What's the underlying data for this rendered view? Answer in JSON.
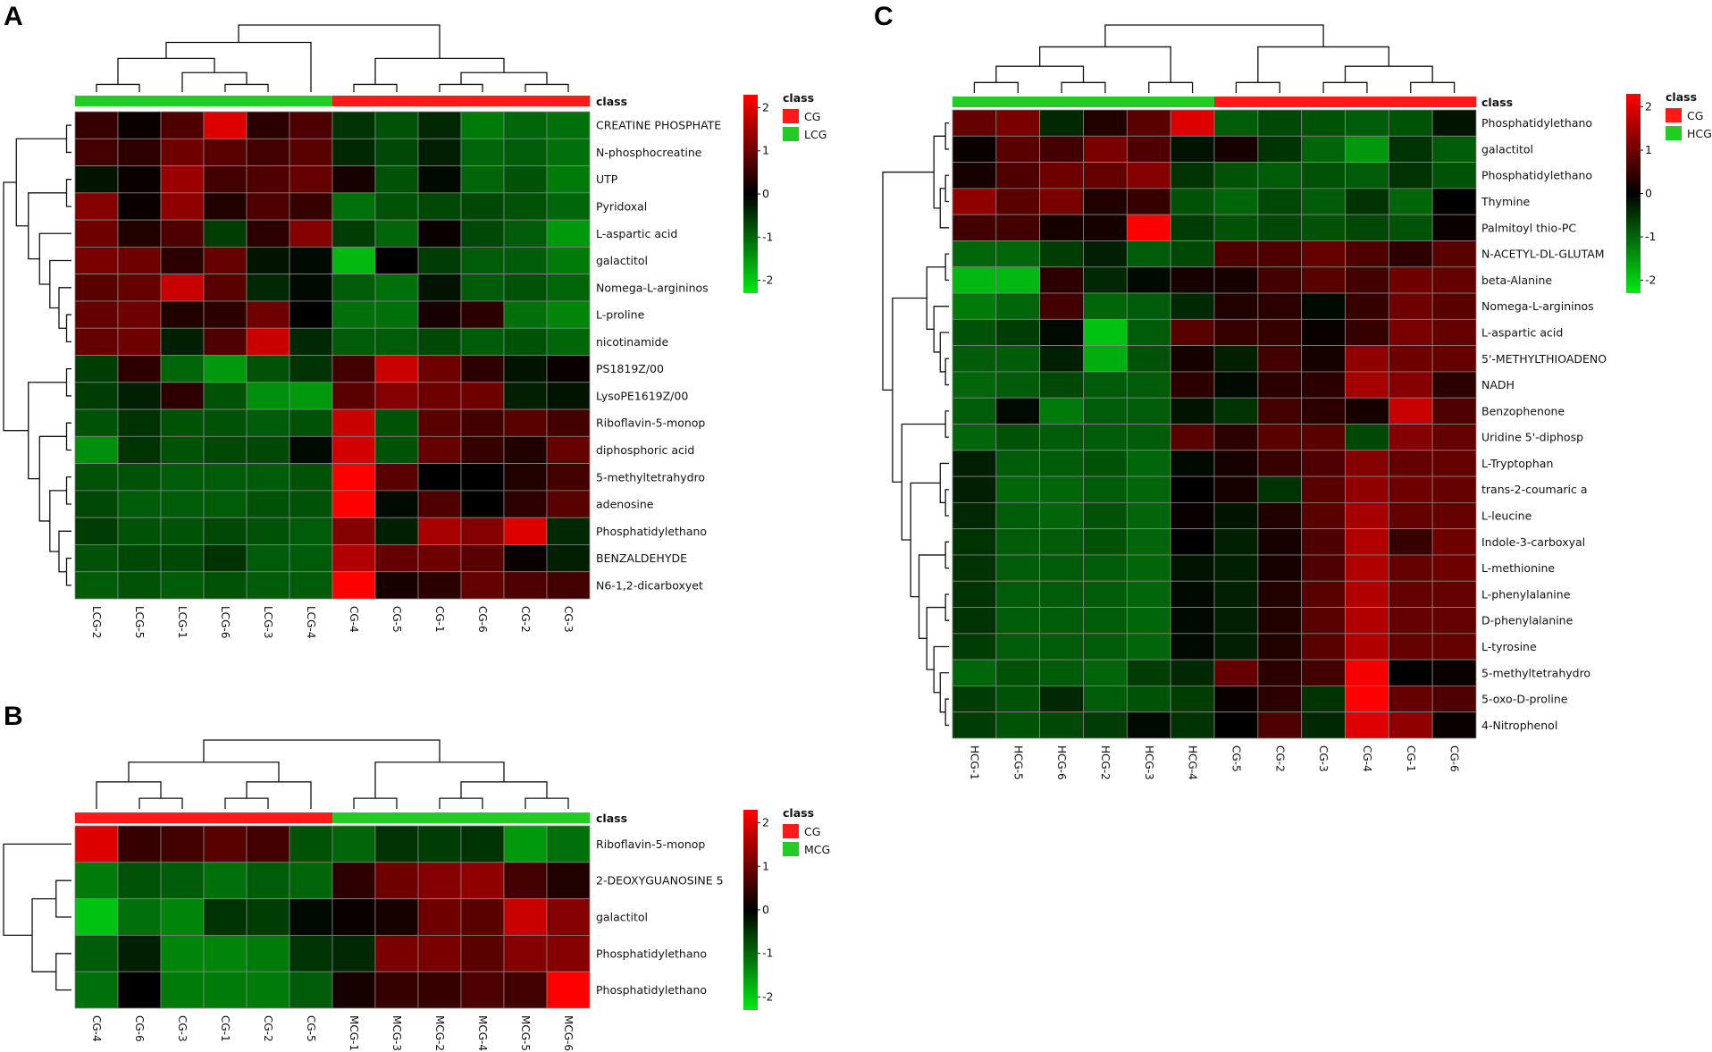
{
  "colors": {
    "cg": "#ff1a1a",
    "other": "#22cc22",
    "grid": "#888888"
  },
  "chart_data": [
    {
      "type": "heatmap",
      "panel": "A",
      "class_label": "class",
      "legend": {
        "title": "class",
        "entries": [
          {
            "name": "CG",
            "color": "#ff1a1a"
          },
          {
            "name": "LCG",
            "color": "#22cc22"
          }
        ]
      },
      "scale": {
        "min": -2.3,
        "max": 2.3,
        "ticks": [
          "2",
          "1",
          "0",
          "-1",
          "-2"
        ]
      },
      "columns": [
        "LCG-2",
        "LCG-5",
        "LCG-1",
        "LCG-6",
        "LCG-3",
        "LCG-4",
        "CG-4",
        "CG-5",
        "CG-1",
        "CG-6",
        "CG-2",
        "CG-3"
      ],
      "column_classes": [
        "LCG",
        "LCG",
        "LCG",
        "LCG",
        "LCG",
        "LCG",
        "CG",
        "CG",
        "CG",
        "CG",
        "CG",
        "CG"
      ],
      "rows": [
        "CREATINE PHOSPHATE",
        "N-phosphocreatine",
        "UTP",
        "Pyridoxal",
        "L-aspartic acid",
        "galactitol",
        "Nomega-L-argininos",
        "L-proline",
        "nicotinamide",
        "PS1819Z/00",
        "LysoPE1619Z/00",
        "Riboflavin-5-monop",
        "diphosphoric acid",
        "5-methyltetrahydro",
        "adenosine",
        "Phosphatidylethano",
        "BENZALDEHYDE",
        "N6-1,2-dicarboxyet"
      ],
      "values": [
        [
          0.5,
          0.1,
          0.7,
          2.0,
          0.4,
          0.7,
          -0.5,
          -0.8,
          -0.4,
          -1.2,
          -1.0,
          -1.1
        ],
        [
          0.6,
          0.4,
          1.0,
          0.8,
          0.6,
          0.8,
          -0.4,
          -0.7,
          -0.3,
          -1.0,
          -0.9,
          -1.1
        ],
        [
          -0.2,
          0.1,
          1.4,
          0.6,
          0.7,
          0.9,
          0.2,
          -0.8,
          -0.1,
          -1.0,
          -0.8,
          -1.2
        ],
        [
          1.2,
          0.1,
          1.3,
          0.3,
          0.7,
          0.5,
          -1.1,
          -0.8,
          -0.7,
          -0.7,
          -0.8,
          -1.0
        ],
        [
          1.0,
          0.3,
          0.7,
          -0.6,
          0.4,
          1.2,
          -0.6,
          -1.0,
          0.1,
          -0.7,
          -0.9,
          -1.5
        ],
        [
          1.1,
          1.0,
          0.4,
          0.9,
          -0.2,
          -0.1,
          -1.8,
          0.0,
          -0.6,
          -0.9,
          -0.9,
          -1.2
        ],
        [
          0.8,
          0.9,
          1.8,
          0.8,
          -0.4,
          -0.1,
          -0.9,
          -1.1,
          -0.2,
          -0.9,
          -0.8,
          -1.0
        ],
        [
          0.9,
          1.0,
          0.3,
          0.4,
          1.0,
          0.0,
          -1.1,
          -1.1,
          0.2,
          0.4,
          -1.1,
          -1.3
        ],
        [
          0.9,
          1.0,
          -0.3,
          0.7,
          1.8,
          -0.4,
          -0.9,
          -0.9,
          -0.7,
          -0.9,
          -0.8,
          -1.0
        ],
        [
          -0.6,
          0.4,
          -1.0,
          -1.5,
          -0.8,
          -0.5,
          0.6,
          1.8,
          1.0,
          0.4,
          -0.2,
          0.1
        ],
        [
          -0.6,
          -0.3,
          0.4,
          -0.8,
          -1.4,
          -1.5,
          0.8,
          1.2,
          1.0,
          1.0,
          -0.3,
          -0.2
        ],
        [
          -0.8,
          -0.5,
          -0.8,
          -0.8,
          -0.9,
          -0.8,
          1.8,
          -0.8,
          0.8,
          0.6,
          0.8,
          0.6
        ],
        [
          -1.4,
          -0.5,
          -0.8,
          -0.7,
          -0.7,
          -0.1,
          1.9,
          -0.8,
          0.9,
          0.5,
          0.3,
          0.9
        ],
        [
          -0.8,
          -0.8,
          -0.9,
          -0.9,
          -0.9,
          -0.8,
          2.3,
          0.8,
          0.0,
          0.0,
          0.3,
          0.6
        ],
        [
          -0.7,
          -0.9,
          -0.9,
          -0.9,
          -0.8,
          -0.8,
          2.3,
          -0.1,
          0.7,
          0.0,
          0.4,
          0.8
        ],
        [
          -0.6,
          -0.8,
          -0.8,
          -0.7,
          -0.8,
          -0.9,
          1.2,
          -0.3,
          1.5,
          1.2,
          2.0,
          -0.4
        ],
        [
          -0.8,
          -0.7,
          -0.7,
          -0.5,
          -0.9,
          -0.9,
          1.6,
          0.9,
          1.0,
          0.8,
          0.1,
          -0.3
        ],
        [
          -0.9,
          -0.8,
          -0.9,
          -0.8,
          -0.9,
          -0.9,
          2.4,
          0.2,
          0.4,
          0.9,
          0.7,
          0.6
        ]
      ]
    },
    {
      "type": "heatmap",
      "panel": "B",
      "class_label": "class",
      "legend": {
        "title": "class",
        "entries": [
          {
            "name": "CG",
            "color": "#ff1a1a"
          },
          {
            "name": "MCG",
            "color": "#22cc22"
          }
        ]
      },
      "scale": {
        "min": -2.3,
        "max": 2.3,
        "ticks": [
          "2",
          "1",
          "0",
          "-1",
          "-2"
        ]
      },
      "columns": [
        "CG-4",
        "CG-6",
        "CG-3",
        "CG-1",
        "CG-2",
        "CG-5",
        "MCG-1",
        "MCG-3",
        "MCG-2",
        "MCG-4",
        "MCG-5",
        "MCG-6"
      ],
      "column_classes": [
        "CG",
        "CG",
        "CG",
        "CG",
        "CG",
        "CG",
        "MCG",
        "MCG",
        "MCG",
        "MCG",
        "MCG",
        "MCG"
      ],
      "rows": [
        "Riboflavin-5-monop",
        "2-DEOXYGUANOSINE 5",
        "galactitol",
        "Phosphatidylethano",
        "Phosphatidylethano"
      ],
      "values": [
        [
          2.0,
          0.5,
          0.6,
          0.8,
          0.6,
          -0.8,
          -1.0,
          -0.5,
          -0.6,
          -0.5,
          -1.5,
          -1.1
        ],
        [
          -1.2,
          -0.8,
          -0.9,
          -1.1,
          -0.9,
          -1.0,
          0.4,
          1.0,
          1.2,
          1.3,
          0.6,
          0.3
        ],
        [
          -1.9,
          -1.1,
          -1.3,
          -0.5,
          -0.6,
          -0.1,
          0.1,
          0.2,
          1.0,
          0.8,
          1.8,
          1.2
        ],
        [
          -0.9,
          -0.3,
          -1.3,
          -1.3,
          -1.2,
          -0.5,
          -0.4,
          1.1,
          1.1,
          0.8,
          1.2,
          1.2
        ],
        [
          -1.1,
          0.0,
          -1.2,
          -1.2,
          -1.2,
          -0.9,
          0.2,
          0.5,
          0.5,
          0.7,
          0.6,
          2.4
        ]
      ]
    },
    {
      "type": "heatmap",
      "panel": "C",
      "class_label": "class",
      "legend": {
        "title": "class",
        "entries": [
          {
            "name": "CG",
            "color": "#ff1a1a"
          },
          {
            "name": "HCG",
            "color": "#22cc22"
          }
        ]
      },
      "scale": {
        "min": -2.3,
        "max": 2.3,
        "ticks": [
          "2",
          "1",
          "0",
          "-1",
          "-2"
        ]
      },
      "columns": [
        "HCG-1",
        "HCG-5",
        "HCG-6",
        "HCG-2",
        "HCG-3",
        "HCG-4",
        "CG-5",
        "CG-2",
        "CG-3",
        "CG-4",
        "CG-1",
        "CG-6"
      ],
      "column_classes": [
        "HCG",
        "HCG",
        "HCG",
        "HCG",
        "HCG",
        "HCG",
        "CG",
        "CG",
        "CG",
        "CG",
        "CG",
        "CG"
      ],
      "rows": [
        "Phosphatidylethano",
        "galactitol",
        "Phosphatidylethano",
        "Thymine",
        "Palmitoyl thio-PC",
        "N-ACETYL-DL-GLUTAM",
        "beta-Alanine",
        "Nomega-L-argininos",
        "L-aspartic acid",
        "5'-METHYLTHIOADENO",
        "NADH",
        "Benzophenone",
        "Uridine 5'-diphosp",
        "L-Tryptophan",
        "trans-2-coumaric a",
        "L-leucine",
        "Indole-3-carboxyal",
        "L-methionine",
        "L-phenylalanine",
        "D-phenylalanine",
        "L-tyrosine",
        "5-methyltetrahydro",
        "5-oxo-D-proline",
        "4-Nitrophenol"
      ],
      "values": [
        [
          0.9,
          1.1,
          -0.4,
          0.3,
          0.8,
          2.0,
          -0.9,
          -0.7,
          -0.8,
          -0.9,
          -0.8,
          -0.2
        ],
        [
          0.1,
          0.8,
          0.6,
          1.1,
          0.7,
          -0.2,
          0.2,
          -0.5,
          -1.0,
          -1.5,
          -0.5,
          -0.9
        ],
        [
          0.2,
          0.7,
          1.0,
          0.9,
          1.2,
          -0.5,
          -0.8,
          -0.9,
          -0.8,
          -0.9,
          -0.5,
          -0.8
        ],
        [
          1.3,
          0.8,
          1.1,
          0.3,
          0.5,
          -0.8,
          -1.0,
          -0.7,
          -0.9,
          -0.5,
          -1.0,
          0.0
        ],
        [
          0.6,
          0.6,
          0.2,
          0.2,
          2.3,
          -0.6,
          -0.8,
          -0.7,
          -0.8,
          -0.7,
          -0.8,
          0.1
        ],
        [
          -1.0,
          -1.0,
          -0.6,
          -0.3,
          -0.9,
          -0.7,
          0.7,
          0.7,
          0.9,
          0.7,
          0.4,
          0.8
        ],
        [
          -1.8,
          -1.8,
          0.4,
          -0.4,
          -0.1,
          0.2,
          0.2,
          0.6,
          0.8,
          0.6,
          1.0,
          0.9
        ],
        [
          -1.2,
          -1.0,
          0.6,
          -1.0,
          -0.9,
          -0.4,
          0.3,
          0.4,
          -0.1,
          0.5,
          1.0,
          0.8
        ],
        [
          -0.8,
          -0.6,
          -0.1,
          -1.9,
          -0.9,
          0.8,
          0.5,
          0.5,
          0.1,
          0.5,
          1.1,
          0.9
        ],
        [
          -0.9,
          -0.9,
          -0.3,
          -1.7,
          -0.8,
          0.2,
          -0.3,
          0.6,
          0.2,
          1.3,
          1.0,
          0.9
        ],
        [
          -1.0,
          -0.9,
          -0.7,
          -0.9,
          -0.9,
          0.4,
          -0.1,
          0.4,
          0.4,
          1.5,
          1.2,
          0.4
        ],
        [
          -0.9,
          -0.1,
          -1.2,
          -0.9,
          -0.9,
          -0.2,
          -0.5,
          0.6,
          0.4,
          0.2,
          1.8,
          0.7
        ],
        [
          -1.0,
          -0.8,
          -0.9,
          -0.9,
          -0.9,
          0.8,
          0.4,
          0.8,
          0.8,
          -0.7,
          1.2,
          0.9
        ],
        [
          -0.3,
          -0.9,
          -0.9,
          -0.8,
          -1.0,
          -0.1,
          0.2,
          0.5,
          0.7,
          1.2,
          0.9,
          0.9
        ],
        [
          -0.3,
          -1.0,
          -1.0,
          -0.9,
          -1.0,
          0.0,
          0.2,
          -0.5,
          0.8,
          1.3,
          1.0,
          0.9
        ],
        [
          -0.4,
          -0.9,
          -1.0,
          -0.8,
          -1.0,
          0.1,
          -0.2,
          0.3,
          0.8,
          1.5,
          0.9,
          0.9
        ],
        [
          -0.5,
          -0.9,
          -0.9,
          -0.8,
          -1.0,
          0.0,
          -0.3,
          0.2,
          0.7,
          1.6,
          0.5,
          1.0
        ],
        [
          -0.5,
          -0.9,
          -0.9,
          -0.9,
          -1.0,
          -0.2,
          -0.3,
          0.2,
          0.7,
          1.6,
          0.9,
          1.0
        ],
        [
          -0.5,
          -0.9,
          -0.9,
          -0.9,
          -1.0,
          -0.1,
          -0.3,
          0.3,
          0.8,
          1.6,
          0.9,
          0.9
        ],
        [
          -0.5,
          -0.9,
          -0.9,
          -0.9,
          -1.0,
          -0.1,
          -0.3,
          0.3,
          0.8,
          1.6,
          0.9,
          0.9
        ],
        [
          -0.6,
          -0.9,
          -0.9,
          -0.9,
          -1.0,
          -0.1,
          -0.3,
          0.3,
          0.8,
          1.6,
          0.9,
          0.9
        ],
        [
          -1.0,
          -0.8,
          -0.9,
          -1.0,
          -0.6,
          -0.4,
          0.9,
          0.4,
          0.6,
          2.2,
          0.0,
          0.1
        ],
        [
          -0.6,
          -0.8,
          -0.4,
          -0.9,
          -0.8,
          -0.6,
          0.1,
          0.4,
          -0.5,
          2.3,
          0.9,
          0.7
        ],
        [
          -0.6,
          -0.8,
          -0.7,
          -0.6,
          -0.1,
          -0.5,
          0.0,
          0.7,
          -0.4,
          2.0,
          1.3,
          0.1
        ]
      ]
    }
  ]
}
